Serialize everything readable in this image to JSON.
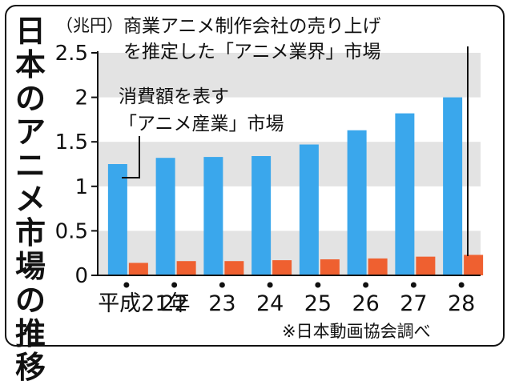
{
  "chart_data": {
    "type": "bar",
    "title": "日本のアニメ市場の推移",
    "unit_label": "（兆円）",
    "source": "※日本動画協会調べ",
    "categories": [
      "平成21年",
      "22",
      "23",
      "24",
      "25",
      "26",
      "27",
      "28"
    ],
    "series": [
      {
        "name": "消費額を表す「アニメ産業」市場",
        "color": "#3aa7ec",
        "values": [
          1.25,
          1.32,
          1.33,
          1.34,
          1.47,
          1.63,
          1.82,
          2.0
        ]
      },
      {
        "name": "商業アニメ制作会社の売り上げを推定した「アニメ業界」市場",
        "color": "#ef6030",
        "values": [
          0.14,
          0.16,
          0.16,
          0.17,
          0.18,
          0.19,
          0.21,
          0.23
        ]
      }
    ],
    "y_ticks": [
      "2.5",
      "2",
      "1.5",
      "1",
      "0.5",
      "0"
    ],
    "ylim": [
      0,
      2.5
    ],
    "grid": "alternating-bands",
    "band_color": "#e3e3e3",
    "annotations": {
      "industry_label_lines": [
        "消費額を表す",
        "「アニメ産業」市場"
      ],
      "business_label_lines": [
        "商業アニメ制作会社の売り上げ",
        "を推定した「アニメ業界」市場"
      ]
    }
  }
}
